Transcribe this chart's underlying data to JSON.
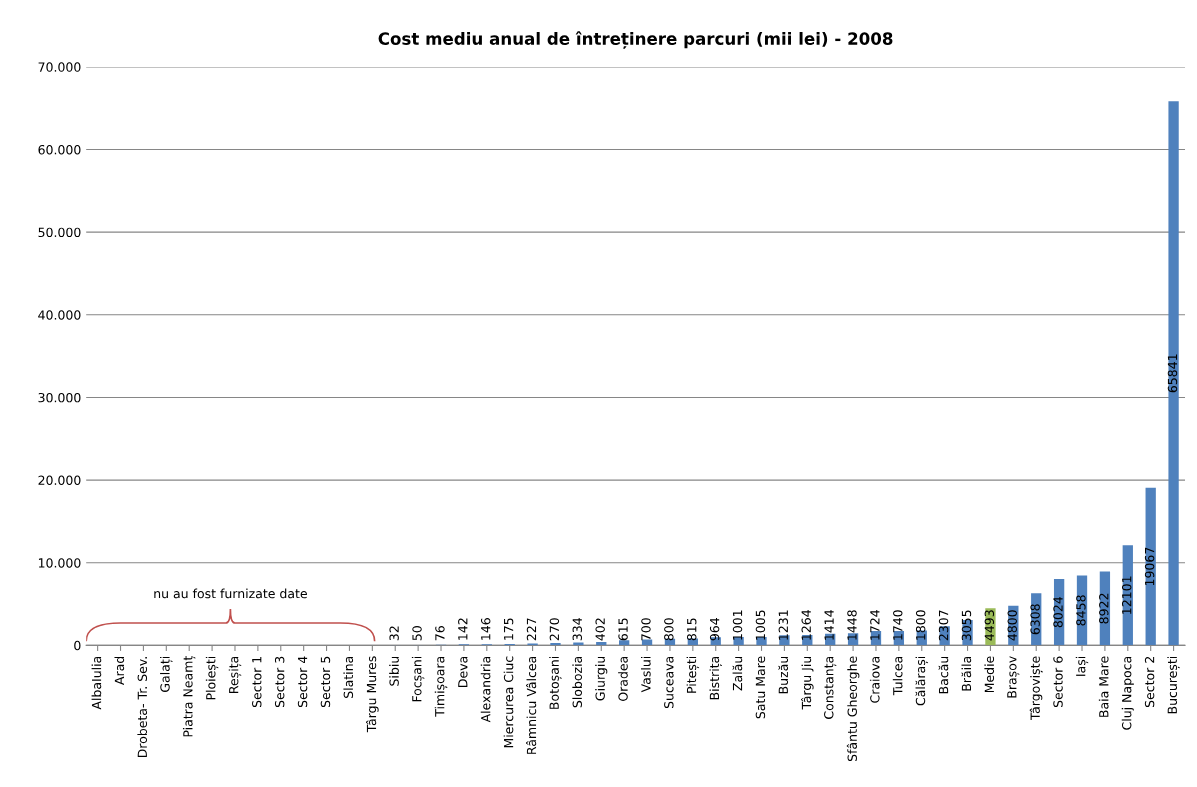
{
  "chart_data": {
    "type": "bar",
    "title": "Cost mediu anual de întreținere parcuri (mii lei) - 2008",
    "categories": [
      "AlbaIulia",
      "Arad",
      "Drobeta- Tr. Sev.",
      "Galați",
      "Piatra Neamț",
      "Ploiești",
      "Reșița",
      "Sector 1",
      "Sector 3",
      "Sector 4",
      "Sector 5",
      "Slatina",
      "Târgu Mures",
      "Sibiu",
      "Focșani",
      "Timișoara",
      "Deva",
      "Alexandria",
      "Miercurea Ciuc",
      "Râmnicu Vâlcea",
      "Botoșani",
      "Slobozia",
      "Giurgiu",
      "Oradea",
      "Vaslui",
      "Suceava",
      "Pitești",
      "Bistrița",
      "Zalău",
      "Satu Mare",
      "Buzău",
      "Târgu Jiu",
      "Constanța",
      "Sfântu Gheorghe",
      "Craiova",
      "Tulcea",
      "Călărași",
      "Bacău",
      "Brăila",
      "Medie",
      "Brașov",
      "Târgoviște",
      "Sector 6",
      "Iași",
      "Baia Mare",
      "Cluj Napoca",
      "Sector 2",
      "București"
    ],
    "values": [
      null,
      null,
      null,
      null,
      null,
      null,
      null,
      null,
      null,
      null,
      null,
      null,
      null,
      32,
      50,
      76,
      142,
      146,
      175,
      227,
      270,
      334,
      402,
      615,
      700,
      800,
      815,
      964,
      1001,
      1005,
      1231,
      1264,
      1414,
      1448,
      1724,
      1740,
      1800,
      2307,
      3055,
      4493,
      4800,
      6308,
      8024,
      8458,
      8922,
      12101,
      19067,
      65841
    ],
    "colors": [
      "#4f81bd",
      "#4f81bd",
      "#4f81bd",
      "#4f81bd",
      "#4f81bd",
      "#4f81bd",
      "#4f81bd",
      "#4f81bd",
      "#4f81bd",
      "#4f81bd",
      "#4f81bd",
      "#4f81bd",
      "#4f81bd",
      "#4f81bd",
      "#4f81bd",
      "#4f81bd",
      "#4f81bd",
      "#4f81bd",
      "#4f81bd",
      "#4f81bd",
      "#4f81bd",
      "#4f81bd",
      "#4f81bd",
      "#4f81bd",
      "#4f81bd",
      "#4f81bd",
      "#4f81bd",
      "#4f81bd",
      "#4f81bd",
      "#4f81bd",
      "#4f81bd",
      "#4f81bd",
      "#4f81bd",
      "#4f81bd",
      "#4f81bd",
      "#4f81bd",
      "#4f81bd",
      "#4f81bd",
      "#4f81bd",
      "#9bbb59",
      "#4f81bd",
      "#4f81bd",
      "#4f81bd",
      "#4f81bd",
      "#4f81bd",
      "#4f81bd",
      "#4f81bd",
      "#4f81bd"
    ],
    "data_labels": true,
    "ylim": [
      0,
      70000
    ],
    "yticks": [
      {
        "value": 0,
        "label": "0"
      },
      {
        "value": 10000,
        "label": "10.000"
      },
      {
        "value": 20000,
        "label": "20.000"
      },
      {
        "value": 30000,
        "label": "30.000"
      },
      {
        "value": 40000,
        "label": "40.000"
      },
      {
        "value": 50000,
        "label": "50.000"
      },
      {
        "value": 60000,
        "label": "60.000"
      },
      {
        "value": 70000,
        "label": "70.000"
      }
    ],
    "grid": "y",
    "annotations": [
      "nu au fost furnizate date"
    ]
  }
}
